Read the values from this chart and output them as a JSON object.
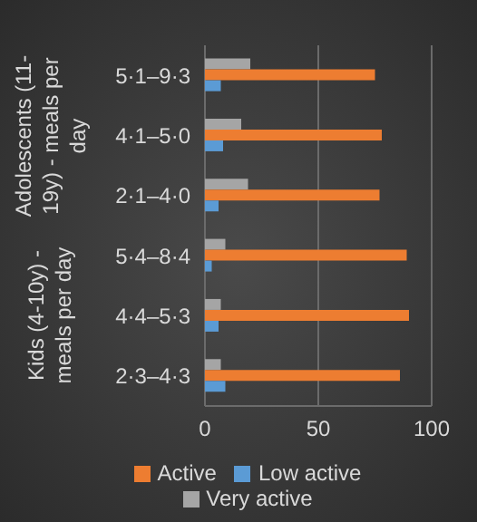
{
  "chart_data": {
    "type": "bar",
    "orientation": "horizontal",
    "categories": [
      "5·1–9·3",
      "4·1–5·0",
      "2·1–4·0",
      "5·4–8·4",
      "4·4–5·3",
      "2·3–4·3"
    ],
    "series": [
      {
        "name": "Very active",
        "color": "#a5a5a5",
        "values": [
          20,
          16,
          19,
          9,
          7,
          7
        ]
      },
      {
        "name": "Active",
        "color": "#ed7d31",
        "values": [
          75,
          78,
          77,
          89,
          90,
          86
        ]
      },
      {
        "name": "Low active",
        "color": "#5b9bd5",
        "values": [
          7,
          8,
          6,
          3,
          6,
          9
        ]
      }
    ],
    "xlim": [
      0,
      100
    ],
    "xticks": [
      0,
      50,
      100
    ],
    "grid": "x",
    "legend": "bottom",
    "annotations": [
      "Adolescents (11-19y) - meals per day",
      "Kids (4-10y) - meals per day"
    ]
  }
}
